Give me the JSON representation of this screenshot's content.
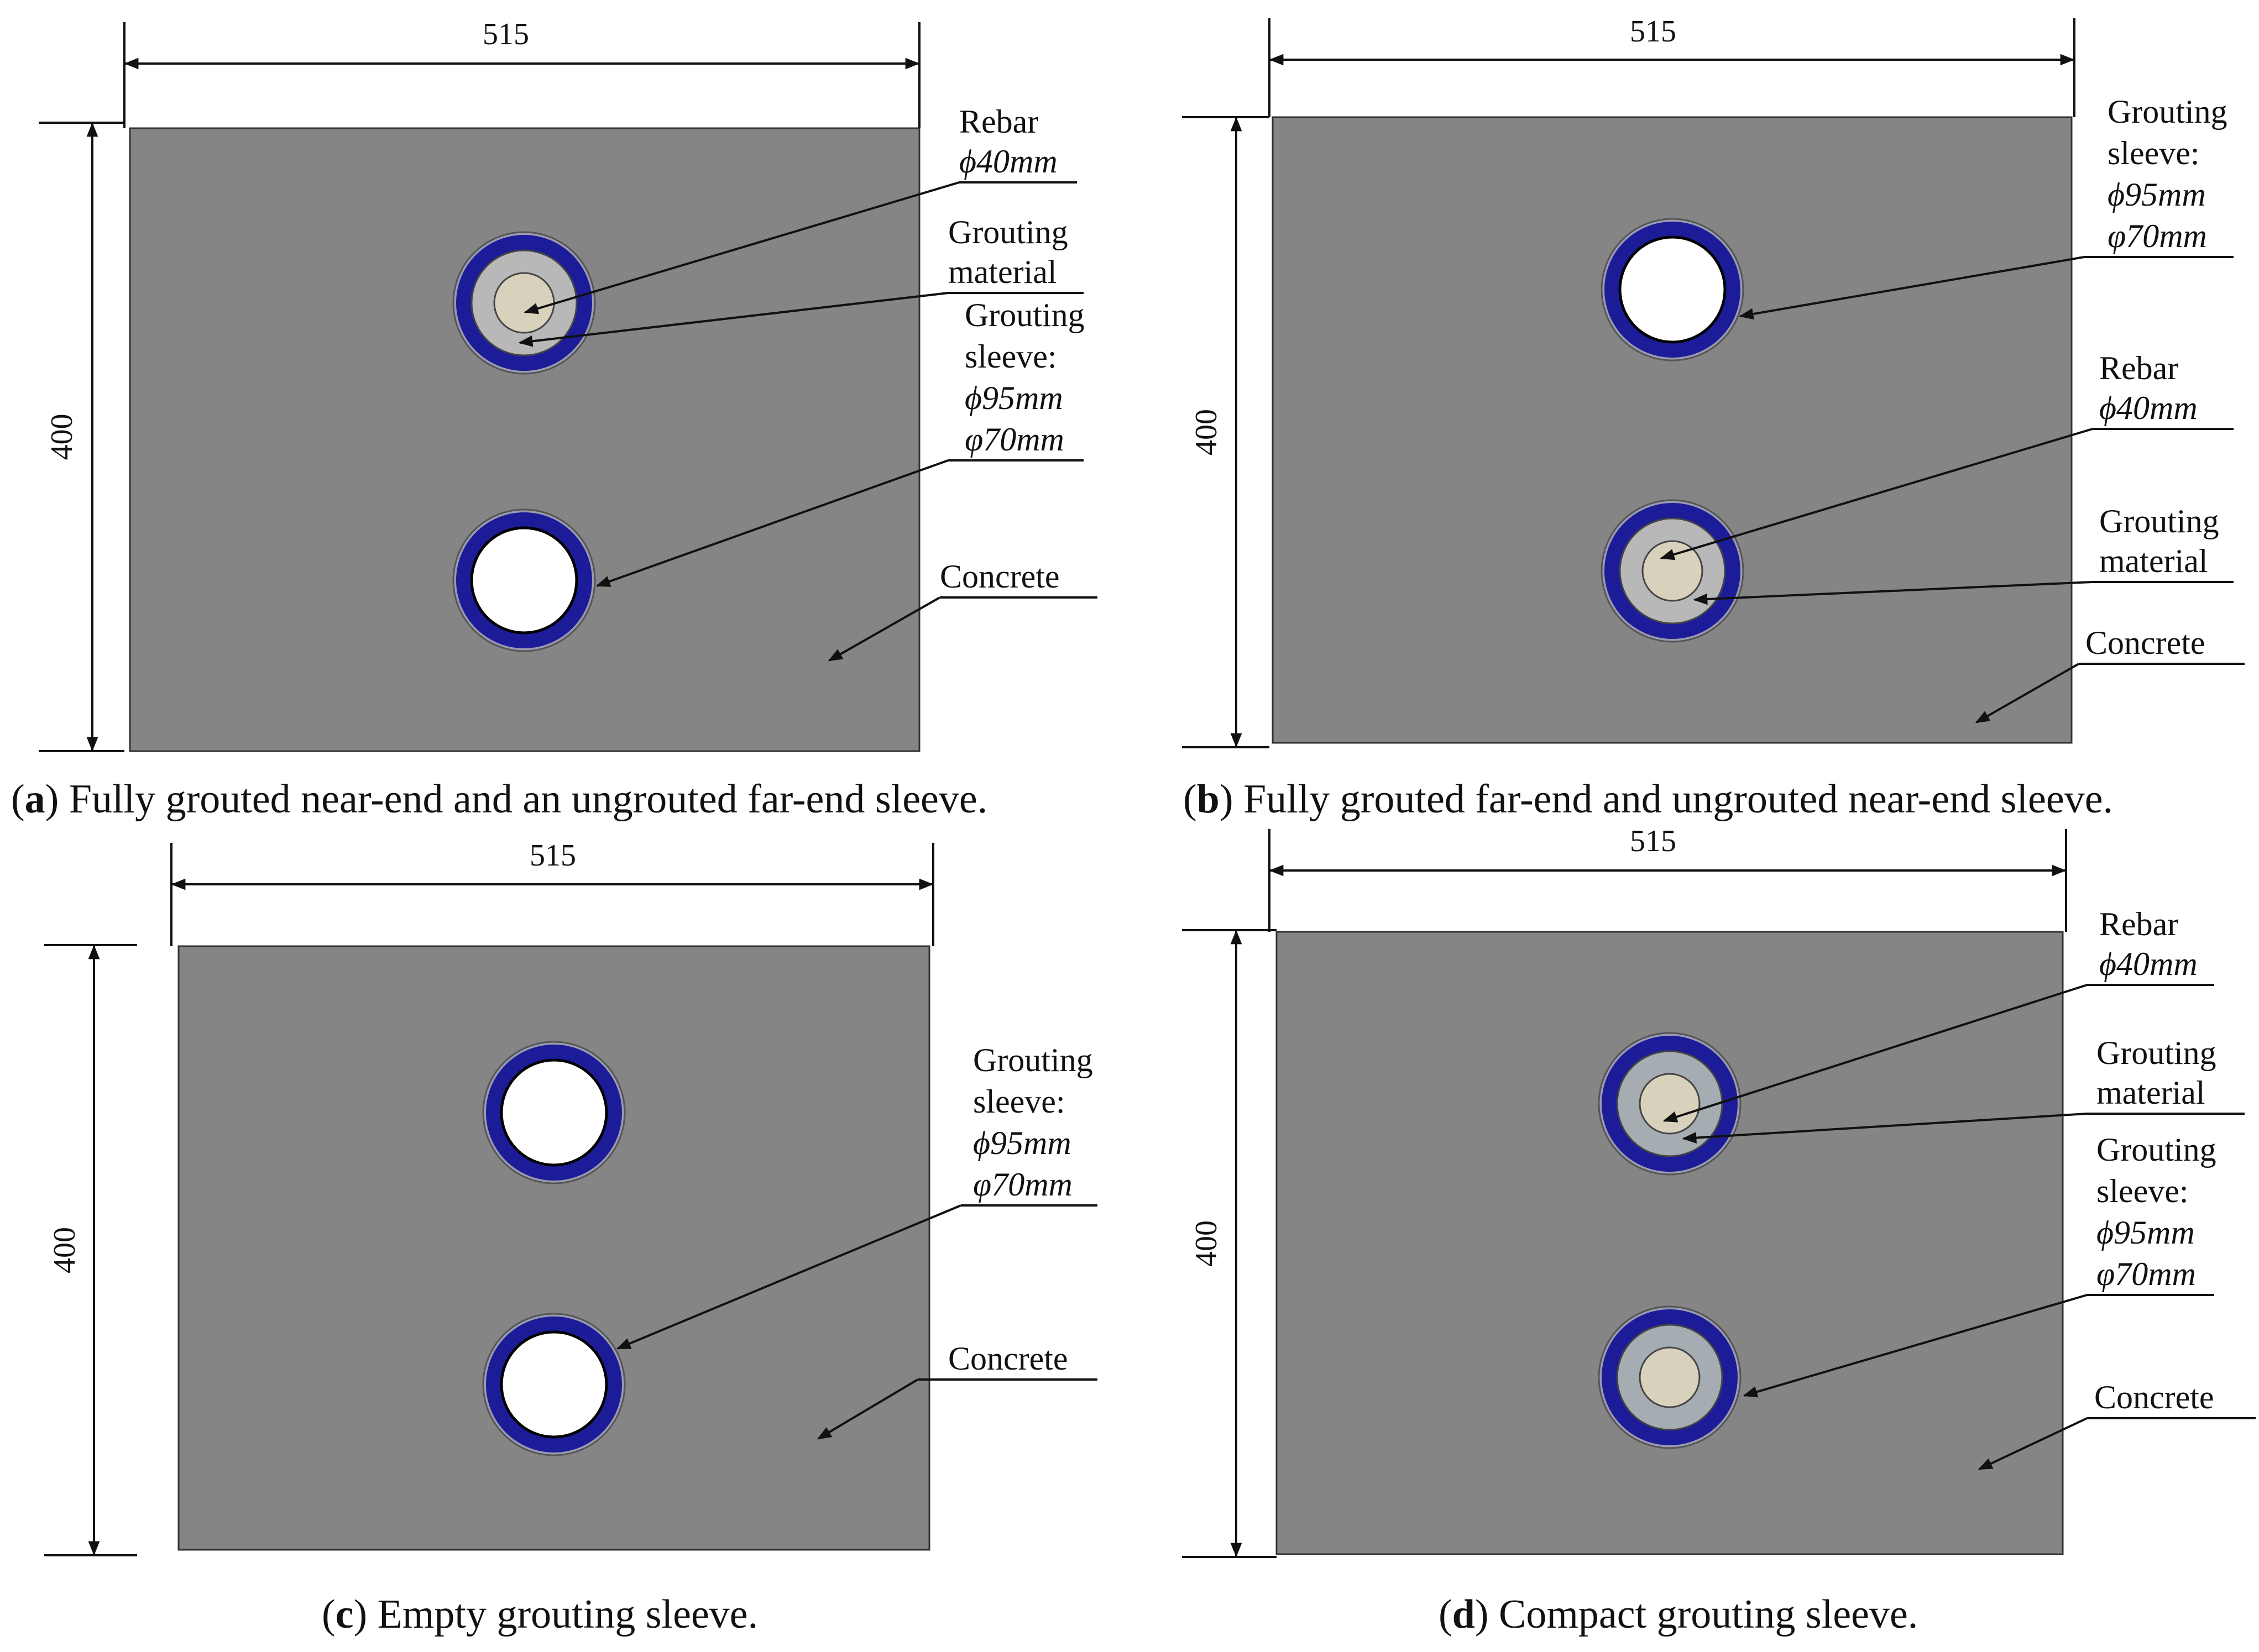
{
  "figure": {
    "panels": [
      {
        "id": "a",
        "caption_letter": "a",
        "caption_text": "Fully grouted near-end and an ungrouted far-end sleeve.",
        "dim_width": "515",
        "dim_height": "400",
        "sleeves": [
          "grouted",
          "empty"
        ],
        "labels": {
          "rebar": [
            "Rebar",
            "ϕ40mm"
          ],
          "grout": [
            "Grouting",
            "material"
          ],
          "sleeve": [
            "Grouting",
            "sleeve:",
            "ϕ95mm",
            "φ70mm"
          ],
          "concrete": [
            "Concrete"
          ]
        }
      },
      {
        "id": "b",
        "caption_letter": "b",
        "caption_text": "Fully grouted far-end and ungrouted near-end sleeve.",
        "dim_width": "515",
        "dim_height": "400",
        "sleeves": [
          "empty",
          "grouted"
        ],
        "labels": {
          "sleeve": [
            "Grouting",
            "sleeve:",
            "ϕ95mm",
            "φ70mm"
          ],
          "rebar": [
            "Rebar",
            "ϕ40mm"
          ],
          "grout": [
            "Grouting",
            "material"
          ],
          "concrete": [
            "Concrete"
          ]
        }
      },
      {
        "id": "c",
        "caption_letter": "c",
        "caption_text": "Empty grouting sleeve.",
        "dim_width": "515",
        "dim_height": "400",
        "sleeves": [
          "empty",
          "empty"
        ],
        "labels": {
          "sleeve": [
            "Grouting",
            "sleeve:",
            "ϕ95mm",
            "φ70mm"
          ],
          "concrete": [
            "Concrete"
          ]
        }
      },
      {
        "id": "d",
        "caption_letter": "d",
        "caption_text": "Compact grouting sleeve.",
        "dim_width": "515",
        "dim_height": "400",
        "sleeves": [
          "compact",
          "compact"
        ],
        "labels": {
          "rebar": [
            "Rebar",
            "ϕ40mm"
          ],
          "grout": [
            "Grouting",
            "material"
          ],
          "sleeve": [
            "Grouting",
            "sleeve:",
            "ϕ95mm",
            "φ70mm"
          ],
          "concrete": [
            "Concrete"
          ]
        }
      }
    ],
    "colors": {
      "concrete": "#858585",
      "sleeve": "#1c1c99",
      "grout": "#b8b8b8",
      "grout_compact": "#a6adb2",
      "rebar": "#d8d2bd",
      "void": "#ffffff",
      "line": "#111111"
    }
  }
}
